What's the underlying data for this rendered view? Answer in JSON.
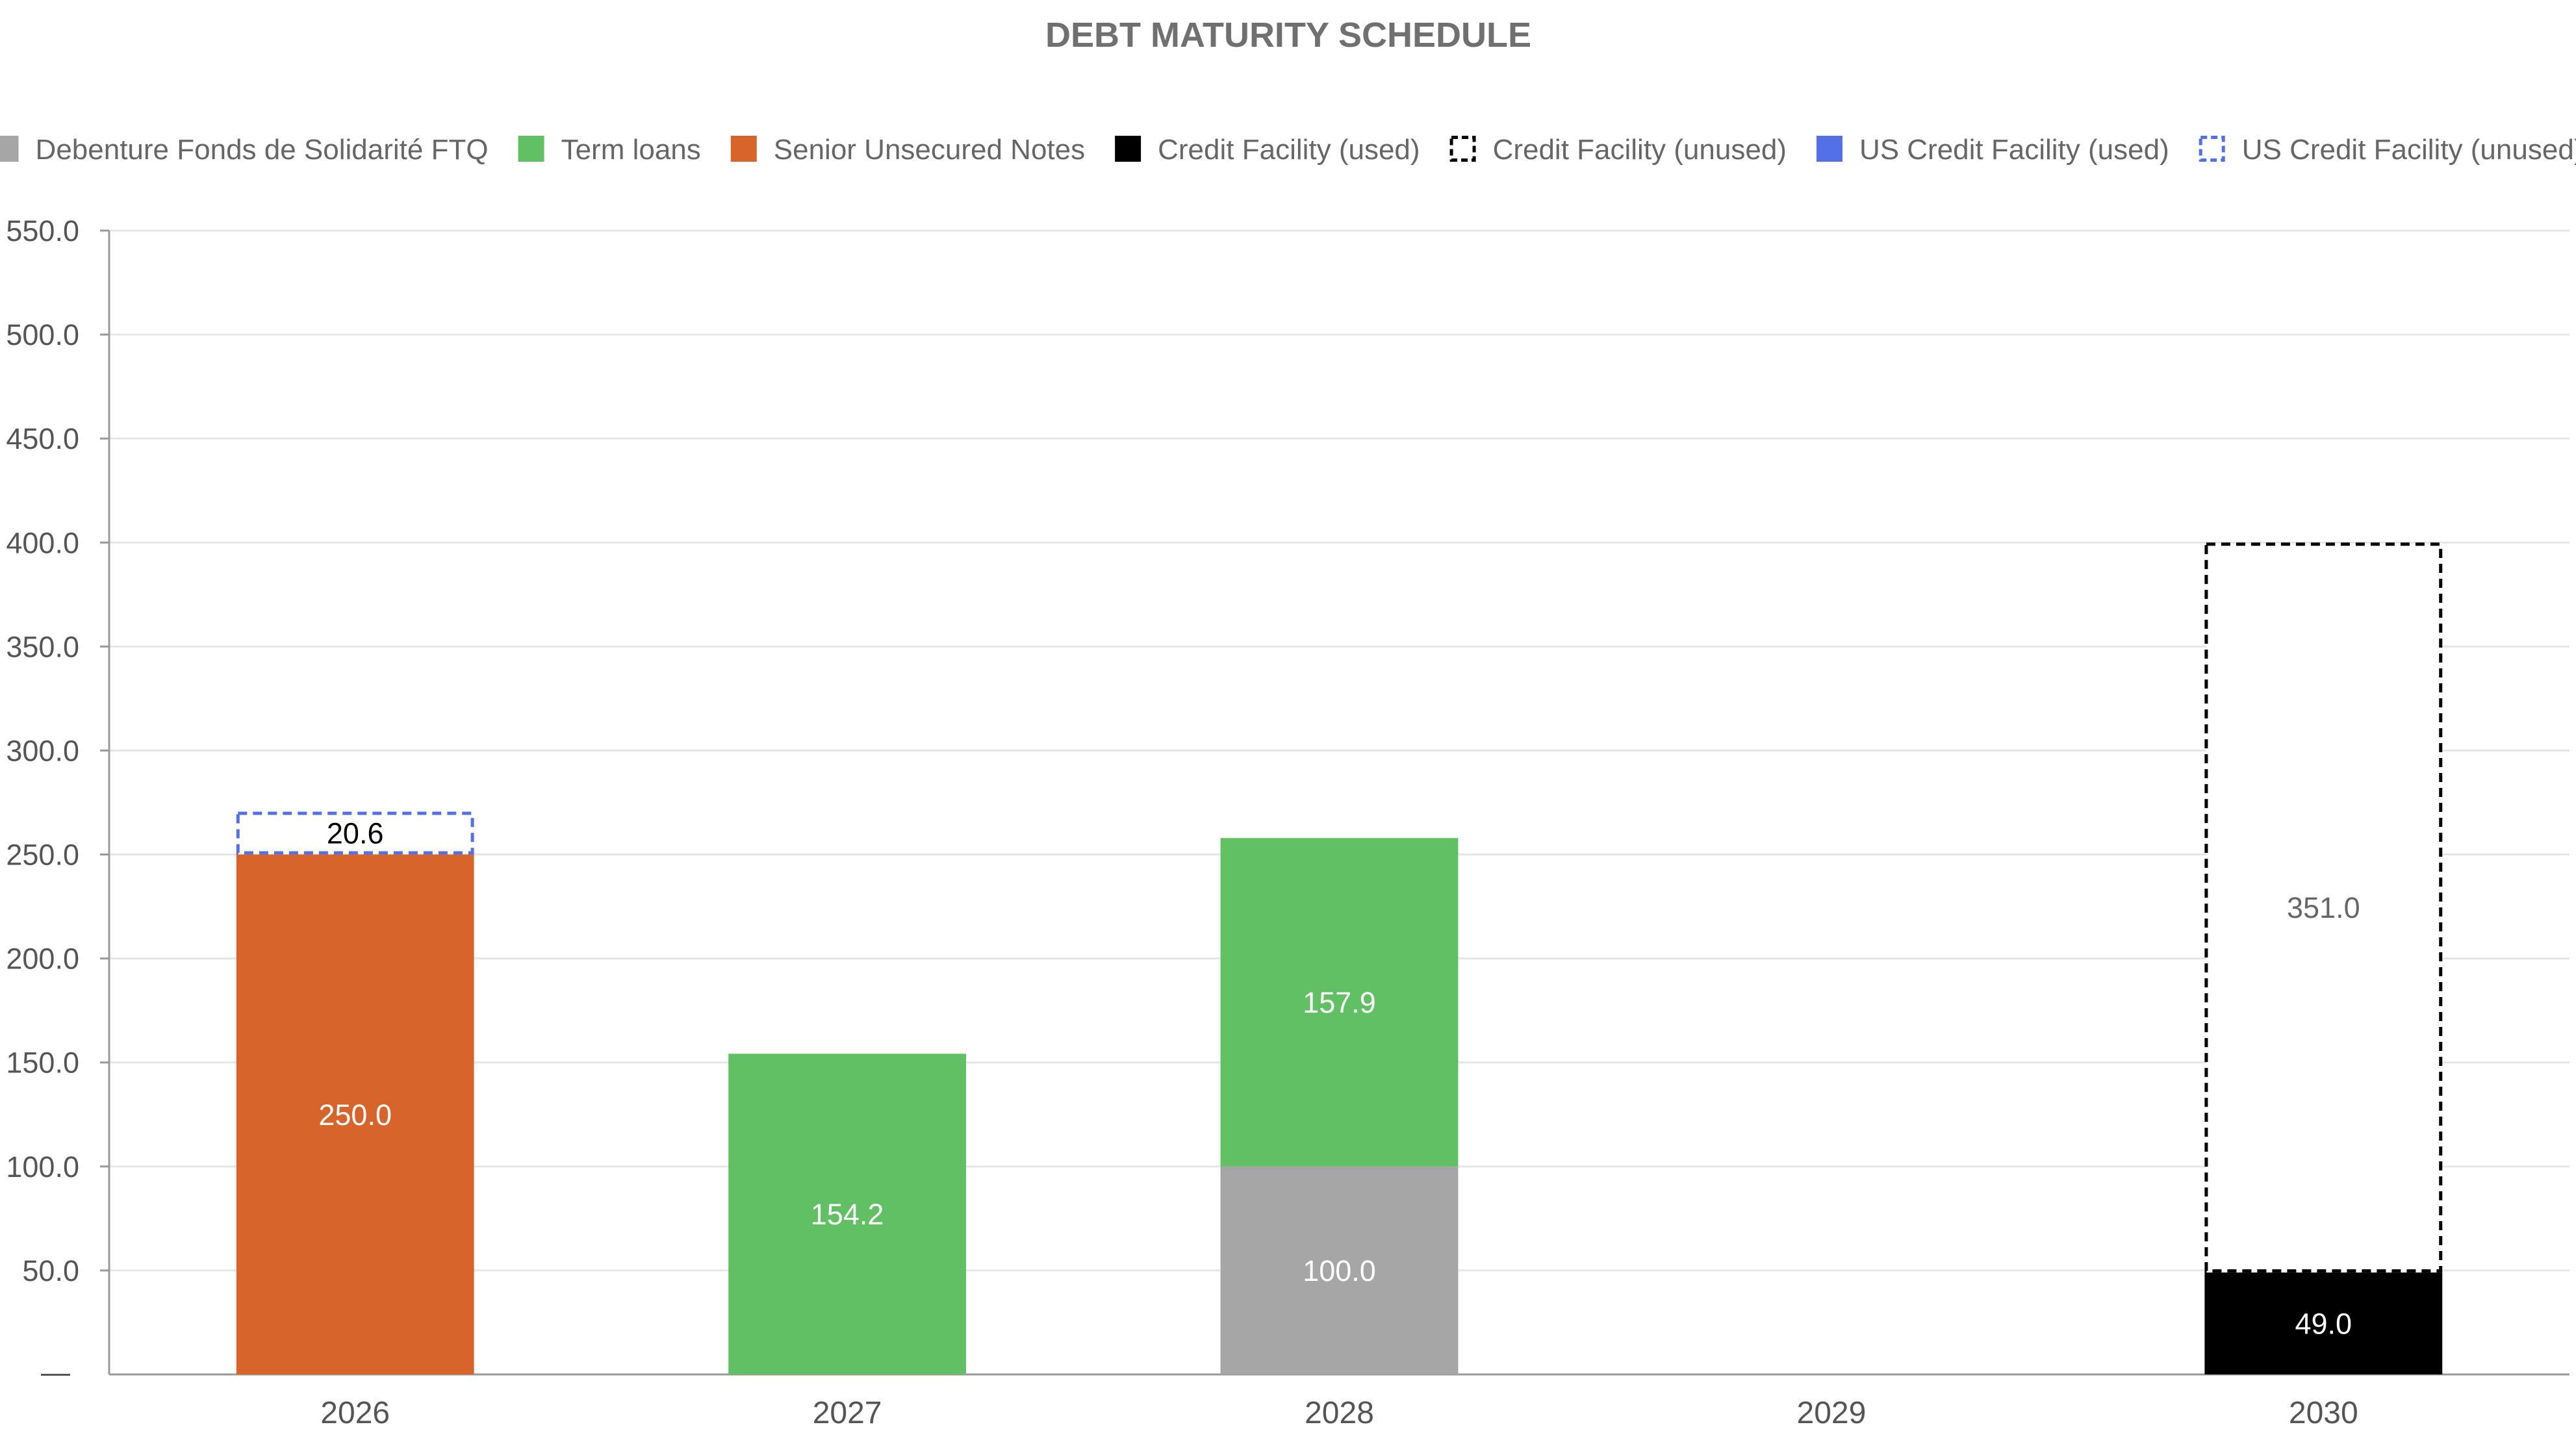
{
  "chart_data": {
    "type": "bar",
    "stacked": true,
    "title": "DEBT MATURITY SCHEDULE",
    "xlabel": "",
    "ylabel": "",
    "ylim": [
      0,
      550
    ],
    "yticks": [
      50,
      100,
      150,
      200,
      250,
      300,
      350,
      400,
      450,
      500,
      550
    ],
    "ytick_labels": [
      "50.0",
      "100.0",
      "150.0",
      "200.0",
      "250.0",
      "300.0",
      "350.0",
      "400.0",
      "450.0",
      "500.0",
      "550.0"
    ],
    "zero_tick_label": "—",
    "grid": true,
    "legend_position": "top",
    "categories": [
      "2026",
      "2027",
      "2028",
      "2029",
      "2030"
    ],
    "series": [
      {
        "name": "Debenture Fonds de Solidarité FTQ",
        "color": "#a6a6a6",
        "style": "solid",
        "label_color": "#ffffff",
        "values": [
          0,
          0,
          100.0,
          0,
          0
        ],
        "labels": [
          "",
          "",
          "100.0",
          "",
          ""
        ]
      },
      {
        "name": "Term loans",
        "color": "#60c063",
        "style": "solid",
        "label_color": "#ffffff",
        "values": [
          0,
          154.2,
          157.9,
          0,
          0
        ],
        "labels": [
          "",
          "154.2",
          "157.9",
          "",
          ""
        ]
      },
      {
        "name": "Senior Unsecured Notes",
        "color": "#d7642a",
        "style": "solid",
        "label_color": "#ffffff",
        "values": [
          250.0,
          0,
          0,
          0,
          0
        ],
        "labels": [
          "250.0",
          "",
          "",
          "",
          ""
        ]
      },
      {
        "name": "Credit Facility (used)",
        "color": "#000000",
        "style": "solid",
        "label_color": "#ffffff",
        "values": [
          0,
          0,
          0,
          0,
          49.0
        ],
        "labels": [
          "",
          "",
          "",
          "",
          "49.0"
        ]
      },
      {
        "name": "Credit Facility (unused)",
        "color": "#000000",
        "style": "dashed",
        "label_color": "#666666",
        "values": [
          0,
          0,
          0,
          0,
          351.0
        ],
        "labels": [
          "",
          "",
          "",
          "",
          "351.0"
        ]
      },
      {
        "name": "US Credit Facility (used)",
        "color": "#5470e6",
        "style": "solid",
        "label_color": "#ffffff",
        "values": [
          0,
          0,
          0,
          0,
          0
        ],
        "labels": [
          "",
          "",
          "",
          "",
          ""
        ]
      },
      {
        "name": "US Credit Facility (unused)",
        "color": "#5470e6",
        "style": "dashed",
        "label_color": "#000000",
        "values": [
          20.6,
          0,
          0,
          0,
          0
        ],
        "labels": [
          "20.6",
          "",
          "",
          "",
          ""
        ]
      }
    ]
  }
}
